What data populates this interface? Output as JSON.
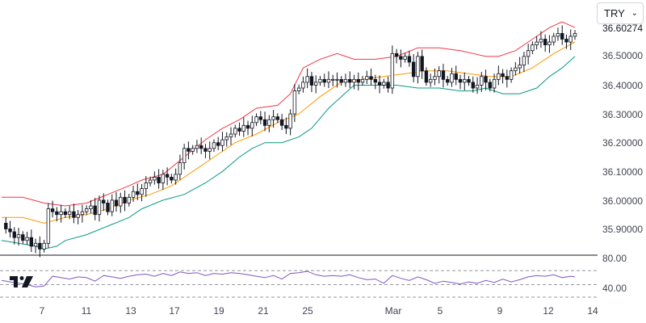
{
  "currency_select": {
    "value": "TRY",
    "chevron_icon": "chevron-down-icon"
  },
  "logo": {
    "name": "tradingview-logo",
    "text": "TV"
  },
  "price_axis": {
    "ticks": [
      "36.50000",
      "36.40000",
      "36.30000",
      "36.20000",
      "36.10000",
      "36.00000",
      "35.90000"
    ],
    "current_price_label": "36.60274"
  },
  "rsi_axis": {
    "ticks": [
      "80.00",
      "40.00"
    ]
  },
  "time_axis": {
    "ticks": [
      "7",
      "11",
      "13",
      "17",
      "19",
      "21",
      "25",
      "Mar",
      "5",
      "9",
      "12",
      "14"
    ]
  },
  "colors": {
    "up": "#131722",
    "down": "#131722",
    "up_body": "#ffffff",
    "bb_upper": "#f23645",
    "bb_lower": "#089981",
    "bb_basis": "#ff9800",
    "rsi": "#7e57c2",
    "grid": "#e0e3eb",
    "separator": "#131722"
  },
  "chart_data": {
    "type": "candlestick",
    "indicators": [
      "Bollinger Bands",
      "RSI"
    ],
    "y_range": [
      35.84,
      36.66
    ],
    "rsi_range": [
      30,
      85
    ],
    "rsi_levels": [
      70,
      50
    ],
    "x_dates": [
      "Feb 7",
      "Feb 11",
      "Feb 13",
      "Feb 17",
      "Feb 19",
      "Feb 21",
      "Feb 25",
      "Mar 1",
      "Mar 5",
      "Mar 9",
      "Mar 12"
    ],
    "close_points": [
      [
        0,
        35.94
      ],
      [
        2,
        35.92
      ],
      [
        4,
        35.91
      ],
      [
        6,
        35.89
      ],
      [
        8,
        35.9
      ],
      [
        10,
        35.88
      ],
      [
        12,
        35.89
      ],
      [
        14,
        35.86
      ],
      [
        16,
        35.87
      ],
      [
        18,
        35.85
      ],
      [
        20,
        35.87
      ],
      [
        22,
        35.99
      ],
      [
        24,
        35.98
      ],
      [
        26,
        35.97
      ],
      [
        28,
        35.98
      ],
      [
        30,
        35.97
      ],
      [
        32,
        35.98
      ],
      [
        34,
        35.96
      ],
      [
        36,
        35.97
      ],
      [
        38,
        35.98
      ],
      [
        40,
        35.99
      ],
      [
        42,
        36.0
      ],
      [
        44,
        35.97
      ],
      [
        46,
        36.02
      ],
      [
        48,
        36.01
      ],
      [
        50,
        35.98
      ],
      [
        52,
        36.02
      ],
      [
        54,
        36.0
      ],
      [
        56,
        36.03
      ],
      [
        58,
        36.01
      ],
      [
        60,
        36.03
      ],
      [
        62,
        36.05
      ],
      [
        64,
        36.04
      ],
      [
        66,
        36.06
      ],
      [
        68,
        36.08
      ],
      [
        70,
        36.09
      ],
      [
        72,
        36.1
      ],
      [
        74,
        36.08
      ],
      [
        76,
        36.11
      ],
      [
        78,
        36.1
      ],
      [
        80,
        36.09
      ],
      [
        82,
        36.11
      ],
      [
        84,
        36.15
      ],
      [
        86,
        36.2
      ],
      [
        88,
        36.19
      ],
      [
        90,
        36.2
      ],
      [
        92,
        36.21
      ],
      [
        94,
        36.2
      ],
      [
        96,
        36.19
      ],
      [
        98,
        36.2
      ],
      [
        100,
        36.22
      ],
      [
        102,
        36.21
      ],
      [
        104,
        36.23
      ],
      [
        106,
        36.24
      ],
      [
        108,
        36.25
      ],
      [
        110,
        36.27
      ],
      [
        112,
        36.26
      ],
      [
        114,
        36.28
      ],
      [
        116,
        36.27
      ],
      [
        118,
        36.29
      ],
      [
        120,
        36.31
      ],
      [
        122,
        36.3
      ],
      [
        124,
        36.28
      ],
      [
        126,
        36.3
      ],
      [
        128,
        36.31
      ],
      [
        130,
        36.3
      ],
      [
        132,
        36.28
      ],
      [
        134,
        36.27
      ],
      [
        136,
        36.32
      ],
      [
        138,
        36.4
      ],
      [
        140,
        36.41
      ],
      [
        142,
        36.43
      ],
      [
        144,
        36.45
      ],
      [
        146,
        36.42
      ],
      [
        148,
        36.43
      ],
      [
        150,
        36.44
      ],
      [
        152,
        36.43
      ],
      [
        154,
        36.44
      ],
      [
        156,
        36.44
      ],
      [
        158,
        36.44
      ],
      [
        160,
        36.43
      ],
      [
        162,
        36.44
      ],
      [
        164,
        36.43
      ],
      [
        166,
        36.44
      ],
      [
        168,
        36.43
      ],
      [
        170,
        36.44
      ],
      [
        172,
        36.45
      ],
      [
        174,
        36.44
      ],
      [
        176,
        36.43
      ],
      [
        178,
        36.42
      ],
      [
        180,
        36.43
      ],
      [
        182,
        36.41
      ],
      [
        184,
        36.53
      ],
      [
        186,
        36.52
      ],
      [
        188,
        36.51
      ],
      [
        190,
        36.52
      ],
      [
        192,
        36.5
      ],
      [
        194,
        36.45
      ],
      [
        196,
        36.52
      ],
      [
        198,
        36.47
      ],
      [
        200,
        36.43
      ],
      [
        202,
        36.44
      ],
      [
        204,
        36.45
      ],
      [
        206,
        36.47
      ],
      [
        208,
        36.44
      ],
      [
        210,
        36.43
      ],
      [
        212,
        36.46
      ],
      [
        214,
        36.44
      ],
      [
        216,
        36.43
      ],
      [
        218,
        36.44
      ],
      [
        220,
        36.43
      ],
      [
        222,
        36.41
      ],
      [
        224,
        36.42
      ],
      [
        226,
        36.45
      ],
      [
        228,
        36.43
      ],
      [
        230,
        36.41
      ],
      [
        232,
        36.44
      ],
      [
        234,
        36.46
      ],
      [
        236,
        36.45
      ],
      [
        238,
        36.44
      ],
      [
        240,
        36.47
      ],
      [
        242,
        36.48
      ],
      [
        244,
        36.49
      ],
      [
        246,
        36.52
      ],
      [
        248,
        36.54
      ],
      [
        250,
        36.56
      ],
      [
        252,
        36.57
      ],
      [
        254,
        36.58
      ],
      [
        256,
        36.56
      ],
      [
        258,
        36.57
      ],
      [
        260,
        36.59
      ],
      [
        262,
        36.6
      ],
      [
        264,
        36.58
      ],
      [
        266,
        36.57
      ],
      [
        268,
        36.59
      ],
      [
        270,
        36.6
      ]
    ],
    "bollinger_upper": [
      [
        0,
        36.03
      ],
      [
        10,
        36.03
      ],
      [
        20,
        36.01
      ],
      [
        30,
        36.0
      ],
      [
        40,
        36.01
      ],
      [
        50,
        36.04
      ],
      [
        60,
        36.07
      ],
      [
        66,
        36.09
      ],
      [
        76,
        36.11
      ],
      [
        86,
        36.17
      ],
      [
        96,
        36.23
      ],
      [
        104,
        36.27
      ],
      [
        112,
        36.3
      ],
      [
        120,
        36.34
      ],
      [
        130,
        36.35
      ],
      [
        136,
        36.39
      ],
      [
        142,
        36.48
      ],
      [
        150,
        36.51
      ],
      [
        158,
        36.53
      ],
      [
        166,
        36.51
      ],
      [
        176,
        36.51
      ],
      [
        186,
        36.52
      ],
      [
        196,
        36.55
      ],
      [
        206,
        36.55
      ],
      [
        216,
        36.54
      ],
      [
        222,
        36.53
      ],
      [
        228,
        36.52
      ],
      [
        234,
        36.52
      ],
      [
        242,
        36.54
      ],
      [
        250,
        36.58
      ],
      [
        258,
        36.62
      ],
      [
        264,
        36.64
      ],
      [
        270,
        36.62
      ]
    ],
    "bollinger_basis": [
      [
        0,
        35.96
      ],
      [
        10,
        35.96
      ],
      [
        20,
        35.94
      ],
      [
        30,
        35.96
      ],
      [
        40,
        35.97
      ],
      [
        50,
        35.99
      ],
      [
        60,
        36.02
      ],
      [
        70,
        36.04
      ],
      [
        80,
        36.07
      ],
      [
        90,
        36.12
      ],
      [
        100,
        36.17
      ],
      [
        110,
        36.22
      ],
      [
        120,
        36.25
      ],
      [
        130,
        36.29
      ],
      [
        140,
        36.32
      ],
      [
        150,
        36.38
      ],
      [
        160,
        36.43
      ],
      [
        170,
        36.44
      ],
      [
        180,
        36.45
      ],
      [
        190,
        36.46
      ],
      [
        200,
        36.47
      ],
      [
        210,
        36.47
      ],
      [
        220,
        36.46
      ],
      [
        230,
        36.45
      ],
      [
        240,
        36.45
      ],
      [
        250,
        36.48
      ],
      [
        260,
        36.53
      ],
      [
        270,
        36.57
      ]
    ],
    "bollinger_lower": [
      [
        0,
        35.88
      ],
      [
        8,
        35.87
      ],
      [
        16,
        35.86
      ],
      [
        20,
        35.85
      ],
      [
        26,
        35.86
      ],
      [
        30,
        35.88
      ],
      [
        40,
        35.9
      ],
      [
        50,
        35.93
      ],
      [
        60,
        35.96
      ],
      [
        66,
        35.99
      ],
      [
        76,
        36.02
      ],
      [
        86,
        36.04
      ],
      [
        96,
        36.08
      ],
      [
        104,
        36.12
      ],
      [
        112,
        36.17
      ],
      [
        118,
        36.2
      ],
      [
        124,
        36.22
      ],
      [
        132,
        36.22
      ],
      [
        140,
        36.24
      ],
      [
        146,
        36.27
      ],
      [
        154,
        36.34
      ],
      [
        160,
        36.38
      ],
      [
        166,
        36.42
      ],
      [
        176,
        36.42
      ],
      [
        186,
        36.42
      ],
      [
        196,
        36.41
      ],
      [
        206,
        36.41
      ],
      [
        216,
        36.4
      ],
      [
        222,
        36.4
      ],
      [
        228,
        36.41
      ],
      [
        236,
        36.39
      ],
      [
        244,
        36.39
      ],
      [
        252,
        36.41
      ],
      [
        258,
        36.45
      ],
      [
        264,
        36.48
      ],
      [
        270,
        36.52
      ]
    ],
    "rsi_values": [
      [
        0,
        56
      ],
      [
        4,
        54
      ],
      [
        8,
        52
      ],
      [
        12,
        50
      ],
      [
        16,
        47
      ],
      [
        20,
        48
      ],
      [
        24,
        62
      ],
      [
        28,
        60
      ],
      [
        32,
        58
      ],
      [
        36,
        61
      ],
      [
        40,
        60
      ],
      [
        44,
        55
      ],
      [
        48,
        63
      ],
      [
        52,
        61
      ],
      [
        56,
        59
      ],
      [
        60,
        62
      ],
      [
        64,
        64
      ],
      [
        68,
        65
      ],
      [
        72,
        62
      ],
      [
        76,
        66
      ],
      [
        80,
        63
      ],
      [
        84,
        68
      ],
      [
        88,
        66
      ],
      [
        92,
        67
      ],
      [
        96,
        63
      ],
      [
        100,
        66
      ],
      [
        104,
        65
      ],
      [
        108,
        67
      ],
      [
        112,
        66
      ],
      [
        116,
        64
      ],
      [
        120,
        62
      ],
      [
        124,
        60
      ],
      [
        128,
        63
      ],
      [
        132,
        58
      ],
      [
        136,
        66
      ],
      [
        140,
        67
      ],
      [
        144,
        69
      ],
      [
        148,
        64
      ],
      [
        152,
        62
      ],
      [
        156,
        63
      ],
      [
        160,
        62
      ],
      [
        164,
        64
      ],
      [
        168,
        60
      ],
      [
        172,
        57
      ],
      [
        176,
        58
      ],
      [
        180,
        52
      ],
      [
        184,
        63
      ],
      [
        188,
        59
      ],
      [
        192,
        56
      ],
      [
        196,
        61
      ],
      [
        200,
        57
      ],
      [
        204,
        52
      ],
      [
        208,
        55
      ],
      [
        212,
        53
      ],
      [
        216,
        51
      ],
      [
        220,
        54
      ],
      [
        224,
        52
      ],
      [
        228,
        56
      ],
      [
        232,
        53
      ],
      [
        236,
        58
      ],
      [
        240,
        54
      ],
      [
        244,
        57
      ],
      [
        248,
        61
      ],
      [
        252,
        63
      ],
      [
        256,
        62
      ],
      [
        260,
        64
      ],
      [
        264,
        60
      ],
      [
        268,
        62
      ],
      [
        270,
        61
      ]
    ]
  }
}
